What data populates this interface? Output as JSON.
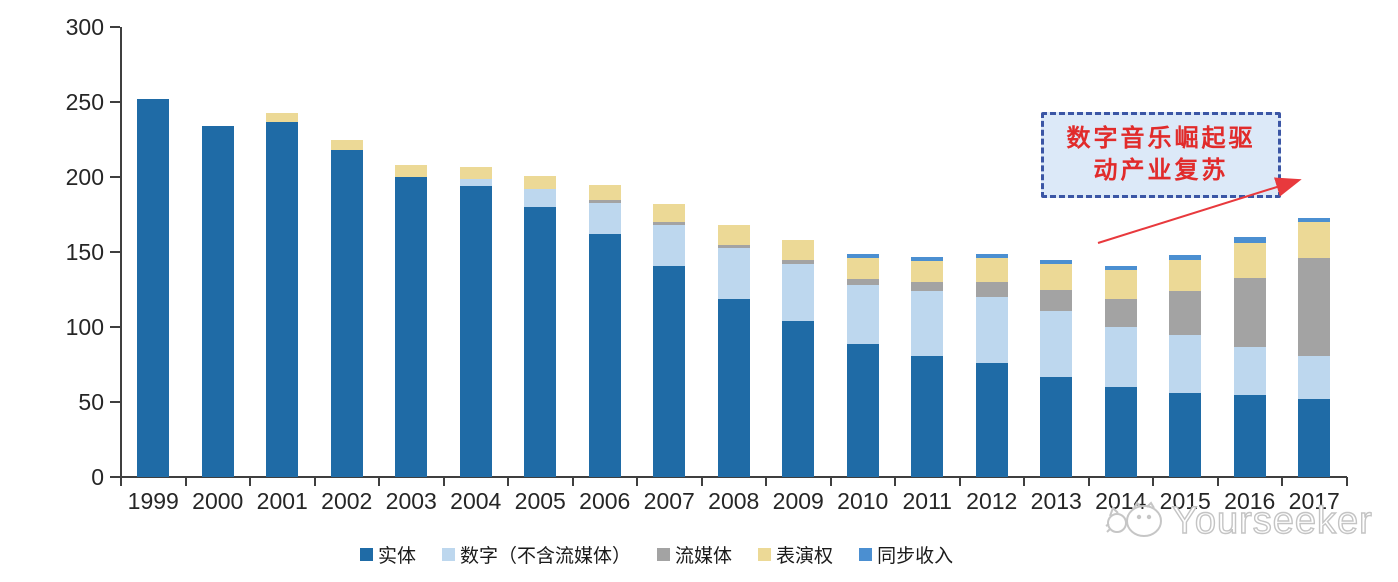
{
  "axis": {
    "y_ticks": [
      0,
      50,
      100,
      150,
      200,
      250,
      300
    ],
    "y_max": 300
  },
  "chart_data": {
    "type": "bar",
    "stacked": true,
    "title": "",
    "xlabel": "",
    "ylabel": "",
    "ylim": [
      0,
      300
    ],
    "grid": false,
    "legend_position": "bottom",
    "categories": [
      "1999",
      "2000",
      "2001",
      "2002",
      "2003",
      "2004",
      "2005",
      "2006",
      "2007",
      "2008",
      "2009",
      "2010",
      "2011",
      "2012",
      "2013",
      "2014",
      "2015",
      "2016",
      "2017"
    ],
    "series": [
      {
        "name": "实体",
        "slug": "physical",
        "color": "#1f6ba6",
        "values": [
          252,
          234,
          237,
          218,
          200,
          194,
          180,
          162,
          141,
          119,
          104,
          89,
          81,
          76,
          67,
          60,
          56,
          55,
          52
        ]
      },
      {
        "name": "数字（不含流媒体）",
        "slug": "digital-excl-streaming",
        "color": "#bdd7ee",
        "values": [
          0,
          0,
          0,
          0,
          0,
          5,
          12,
          21,
          27,
          34,
          38,
          39,
          43,
          44,
          44,
          40,
          39,
          32,
          29
        ]
      },
      {
        "name": "流媒体",
        "slug": "streaming",
        "color": "#a3a3a3",
        "values": [
          0,
          0,
          0,
          0,
          0,
          0,
          0,
          2,
          2,
          2,
          3,
          4,
          6,
          10,
          14,
          19,
          29,
          46,
          65
        ]
      },
      {
        "name": "表演权",
        "slug": "performance-rights",
        "color": "#ecd996",
        "values": [
          0,
          0,
          6,
          7,
          8,
          8,
          9,
          10,
          12,
          13,
          13,
          14,
          14,
          16,
          17,
          19,
          21,
          23,
          24
        ]
      },
      {
        "name": "同步收入",
        "slug": "sync-revenue",
        "color": "#4b8fd1",
        "values": [
          0,
          0,
          0,
          0,
          0,
          0,
          0,
          0,
          0,
          0,
          0,
          3,
          3,
          3,
          3,
          3,
          3,
          4,
          3
        ]
      }
    ]
  },
  "annotation": {
    "line1": "数字音乐崛起驱",
    "line2": "动产业复苏",
    "text_color": "#e12b2b",
    "border_color": "#3b56a5",
    "fill_color": "#dce9f8",
    "arrow_color": "#e8393d"
  },
  "watermark": {
    "text": "Yourseeker",
    "logo": "yourseeker-cat-logo",
    "color": "#c4c4c4"
  }
}
